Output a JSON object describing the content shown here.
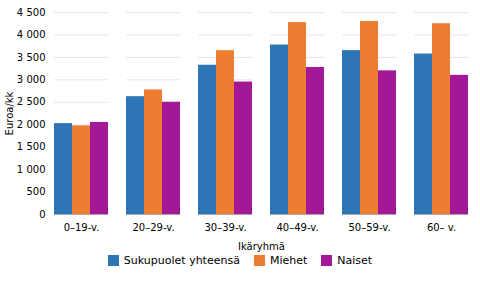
{
  "chart_data": {
    "type": "bar",
    "xlabel": "Ikäryhmä",
    "ylabel": "Euroa/kk",
    "categories": [
      "0–19-v.",
      "20–29-v.",
      "30–39-v.",
      "40–49-v.",
      "50–59-v.",
      "60– v."
    ],
    "series": [
      {
        "name": "Sukupuolet yhteensä",
        "color": "#2E75B6",
        "values": [
          2025,
          2625,
          3325,
          3775,
          3650,
          3575
        ]
      },
      {
        "name": "Miehet",
        "color": "#ED7D31",
        "values": [
          1975,
          2775,
          3650,
          4275,
          4300,
          4250
        ]
      },
      {
        "name": "Naiset",
        "color": "#A21897",
        "values": [
          2050,
          2500,
          2950,
          3275,
          3200,
          3100
        ]
      }
    ],
    "ylim": [
      0,
      4500
    ],
    "yticks": [
      0,
      500,
      {
        "value": 1000,
        "label": "1 000"
      },
      {
        "value": 1500,
        "label": "1 500"
      },
      {
        "value": 2000,
        "label": "2 000"
      },
      {
        "value": 2500,
        "label": "2 500"
      },
      {
        "value": 3000,
        "label": "3 000"
      },
      {
        "value": 3500,
        "label": "3 500"
      },
      {
        "value": 4000,
        "label": "4 000"
      },
      {
        "value": 4500,
        "label": "4 500"
      }
    ],
    "grid": true,
    "legend": "bottom"
  }
}
